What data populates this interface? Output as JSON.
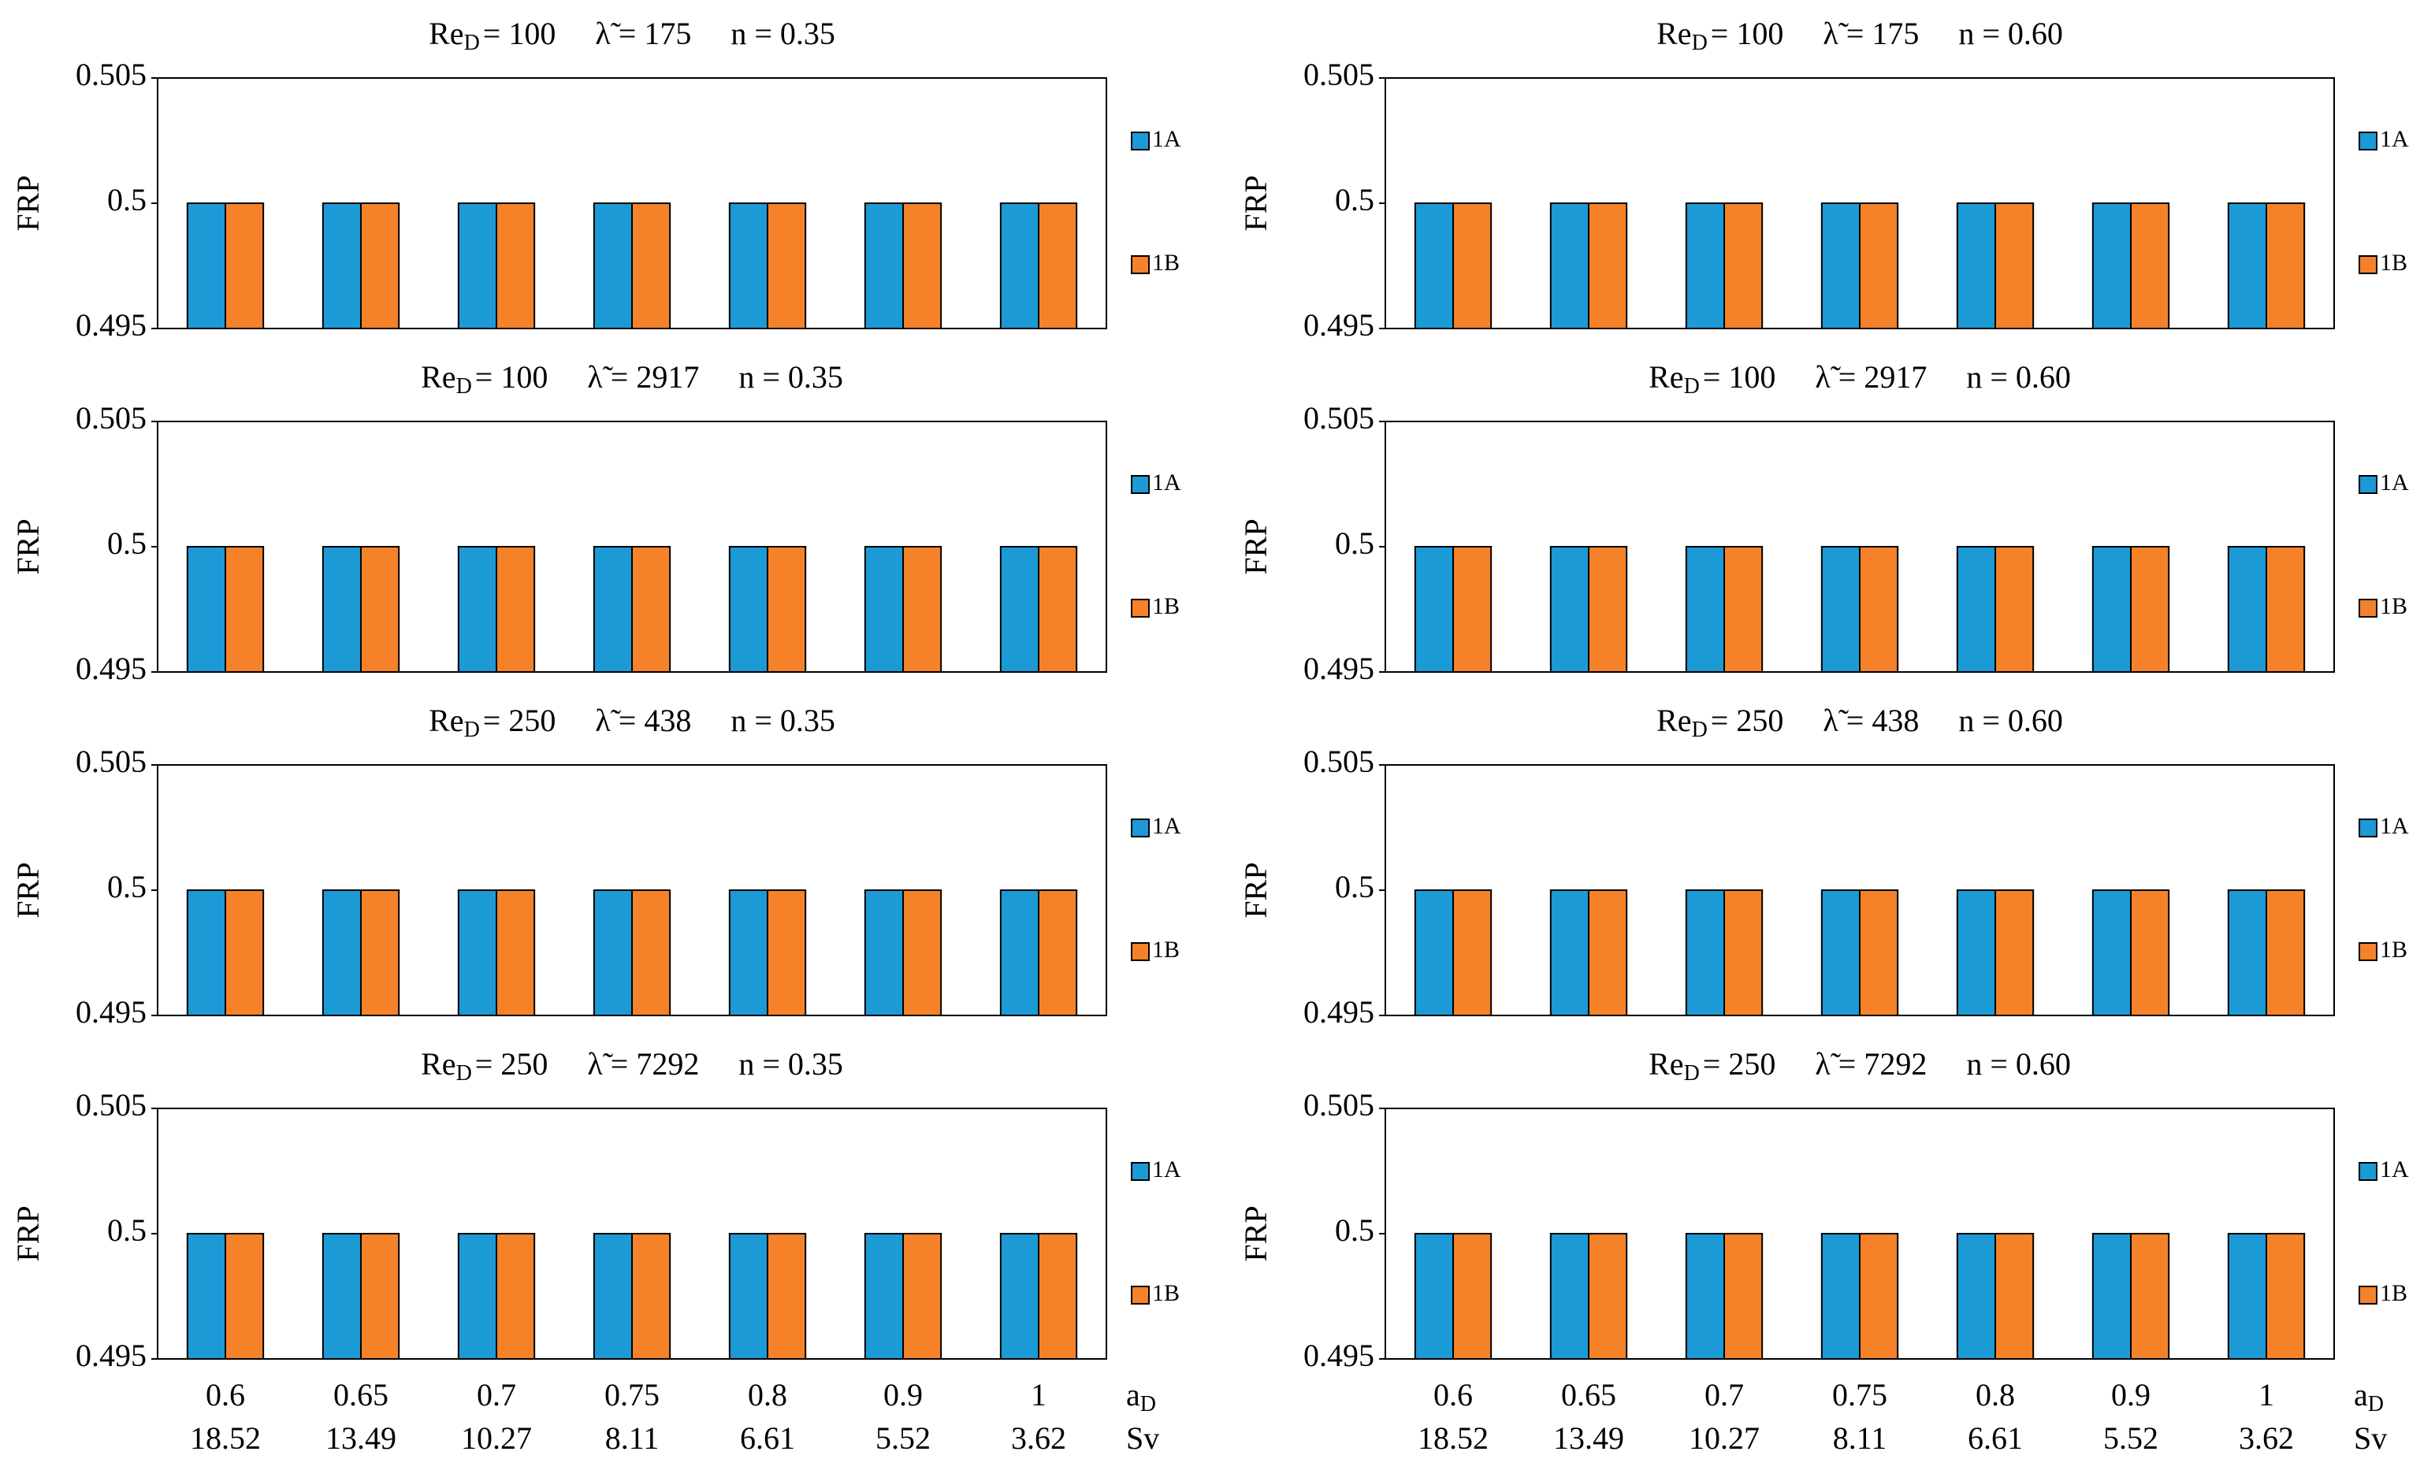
{
  "chart_data": [
    {
      "type": "bar",
      "title": {
        "re": "Re",
        "re_sub": "D",
        "re_value": "= 100",
        "lambda": "λ̃ = 175",
        "n": "n = 0.35"
      },
      "y_label": "FRP",
      "categories": [
        null,
        null,
        null,
        null,
        null,
        null,
        null
      ],
      "series": [
        {
          "name": "1A",
          "color": "#1b9ad6",
          "values": [
            0.5,
            0.5,
            0.5,
            0.5,
            0.5,
            0.5,
            0.5
          ]
        },
        {
          "name": "1B",
          "color": "#f58229",
          "values": [
            0.5,
            0.5,
            0.5,
            0.5,
            0.5,
            0.5,
            0.5
          ]
        }
      ],
      "ylim": [
        0.495,
        0.505
      ],
      "yticks": [
        0.495,
        0.5,
        0.505
      ]
    },
    {
      "type": "bar",
      "title": {
        "re": "Re",
        "re_sub": "D",
        "re_value": "= 100",
        "lambda": "λ̃ = 175",
        "n": "n = 0.60"
      },
      "y_label": "FRP",
      "categories": [
        null,
        null,
        null,
        null,
        null,
        null,
        null
      ],
      "series": [
        {
          "name": "1A",
          "color": "#1b9ad6",
          "values": [
            0.5,
            0.5,
            0.5,
            0.5,
            0.5,
            0.5,
            0.5
          ]
        },
        {
          "name": "1B",
          "color": "#f58229",
          "values": [
            0.5,
            0.5,
            0.5,
            0.5,
            0.5,
            0.5,
            0.5
          ]
        }
      ],
      "ylim": [
        0.495,
        0.505
      ],
      "yticks": [
        0.495,
        0.5,
        0.505
      ]
    },
    {
      "type": "bar",
      "title": {
        "re": "Re",
        "re_sub": "D",
        "re_value": "= 100",
        "lambda": "λ̃ = 2917",
        "n": "n = 0.35"
      },
      "y_label": "FRP",
      "categories": [
        null,
        null,
        null,
        null,
        null,
        null,
        null
      ],
      "series": [
        {
          "name": "1A",
          "color": "#1b9ad6",
          "values": [
            0.5,
            0.5,
            0.5,
            0.5,
            0.5,
            0.5,
            0.5
          ]
        },
        {
          "name": "1B",
          "color": "#f58229",
          "values": [
            0.5,
            0.5,
            0.5,
            0.5,
            0.5,
            0.5,
            0.5
          ]
        }
      ],
      "ylim": [
        0.495,
        0.505
      ],
      "yticks": [
        0.495,
        0.5,
        0.505
      ]
    },
    {
      "type": "bar",
      "title": {
        "re": "Re",
        "re_sub": "D",
        "re_value": "= 100",
        "lambda": "λ̃ = 2917",
        "n": "n = 0.60"
      },
      "y_label": "FRP",
      "categories": [
        null,
        null,
        null,
        null,
        null,
        null,
        null
      ],
      "series": [
        {
          "name": "1A",
          "color": "#1b9ad6",
          "values": [
            0.5,
            0.5,
            0.5,
            0.5,
            0.5,
            0.5,
            0.5
          ]
        },
        {
          "name": "1B",
          "color": "#f58229",
          "values": [
            0.5,
            0.5,
            0.5,
            0.5,
            0.5,
            0.5,
            0.5
          ]
        }
      ],
      "ylim": [
        0.495,
        0.505
      ],
      "yticks": [
        0.495,
        0.5,
        0.505
      ]
    },
    {
      "type": "bar",
      "title": {
        "re": "Re",
        "re_sub": "D",
        "re_value": "= 250",
        "lambda": "λ̃ = 438",
        "n": "n = 0.35"
      },
      "y_label": "FRP",
      "categories": [
        null,
        null,
        null,
        null,
        null,
        null,
        null
      ],
      "series": [
        {
          "name": "1A",
          "color": "#1b9ad6",
          "values": [
            0.5,
            0.5,
            0.5,
            0.5,
            0.5,
            0.5,
            0.5
          ]
        },
        {
          "name": "1B",
          "color": "#f58229",
          "values": [
            0.5,
            0.5,
            0.5,
            0.5,
            0.5,
            0.5,
            0.5
          ]
        }
      ],
      "ylim": [
        0.495,
        0.505
      ],
      "yticks": [
        0.495,
        0.5,
        0.505
      ]
    },
    {
      "type": "bar",
      "title": {
        "re": "Re",
        "re_sub": "D",
        "re_value": "= 250",
        "lambda": "λ̃ = 438",
        "n": "n = 0.60"
      },
      "y_label": "FRP",
      "categories": [
        null,
        null,
        null,
        null,
        null,
        null,
        null
      ],
      "series": [
        {
          "name": "1A",
          "color": "#1b9ad6",
          "values": [
            0.5,
            0.5,
            0.5,
            0.5,
            0.5,
            0.5,
            0.5
          ]
        },
        {
          "name": "1B",
          "color": "#f58229",
          "values": [
            0.5,
            0.5,
            0.5,
            0.5,
            0.5,
            0.5,
            0.5
          ]
        }
      ],
      "ylim": [
        0.495,
        0.505
      ],
      "yticks": [
        0.495,
        0.5,
        0.505
      ]
    },
    {
      "type": "bar",
      "title": {
        "re": "Re",
        "re_sub": "D",
        "re_value": "= 250",
        "lambda": "λ̃ = 7292",
        "n": "n = 0.35"
      },
      "y_label": "FRP",
      "x_label": "a",
      "x_label_sub": "D",
      "x_label2": "Sv",
      "categories": [
        "0.6",
        "0.65",
        "0.7",
        "0.75",
        "0.8",
        "0.9",
        "1"
      ],
      "categories2": [
        "18.52",
        "13.49",
        "10.27",
        "8.11",
        "6.61",
        "5.52",
        "3.62"
      ],
      "series": [
        {
          "name": "1A",
          "color": "#1b9ad6",
          "values": [
            0.5,
            0.5,
            0.5,
            0.5,
            0.5,
            0.5,
            0.5
          ]
        },
        {
          "name": "1B",
          "color": "#f58229",
          "values": [
            0.5,
            0.5,
            0.5,
            0.5,
            0.5,
            0.5,
            0.5
          ]
        }
      ],
      "ylim": [
        0.495,
        0.505
      ],
      "yticks": [
        0.495,
        0.5,
        0.505
      ]
    },
    {
      "type": "bar",
      "title": {
        "re": "Re",
        "re_sub": "D",
        "re_value": "= 250",
        "lambda": "λ̃ = 7292",
        "n": "n = 0.60"
      },
      "y_label": "FRP",
      "x_label": "a",
      "x_label_sub": "D",
      "x_label2": "Sv",
      "categories": [
        "0.6",
        "0.65",
        "0.7",
        "0.75",
        "0.8",
        "0.9",
        "1"
      ],
      "categories2": [
        "18.52",
        "13.49",
        "10.27",
        "8.11",
        "6.61",
        "5.52",
        "3.62"
      ],
      "series": [
        {
          "name": "1A",
          "color": "#1b9ad6",
          "values": [
            0.5,
            0.5,
            0.5,
            0.5,
            0.5,
            0.5,
            0.5
          ]
        },
        {
          "name": "1B",
          "color": "#f58229",
          "values": [
            0.5,
            0.5,
            0.5,
            0.5,
            0.5,
            0.5,
            0.5
          ]
        }
      ],
      "ylim": [
        0.495,
        0.505
      ],
      "yticks": [
        0.495,
        0.5,
        0.505
      ]
    }
  ]
}
